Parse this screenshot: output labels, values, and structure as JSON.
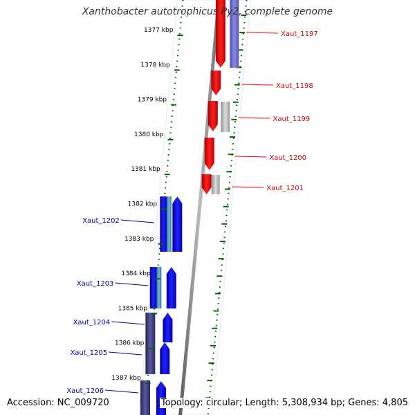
{
  "title": "Xanthobacter autotrophicus Py2, complete genome",
  "footer": {
    "accession": "Accession: NC_009720",
    "topology": "Topology: circular; Length: 5,308,934 bp; Genes: 4,805"
  },
  "colors": {
    "forward": "#ff0000",
    "reverse": "#0000ff",
    "pseudo_gray": "#b8b8b8",
    "purple": "#6f6fd0",
    "dark_purple": "#3d3d80",
    "teal": "#4a8fb8",
    "tick_green": "#006600",
    "backbone": "#888888"
  },
  "scale": {
    "ticks": [
      {
        "label": "1377 kbp",
        "kbp": 1377
      },
      {
        "label": "1378 kbp",
        "kbp": 1378
      },
      {
        "label": "1379 kbp",
        "kbp": 1379
      },
      {
        "label": "1380 kbp",
        "kbp": 1380
      },
      {
        "label": "1381 kbp",
        "kbp": 1381
      },
      {
        "label": "1382 kbp",
        "kbp": 1382
      },
      {
        "label": "1383 kbp",
        "kbp": 1383
      },
      {
        "label": "1384 kbp",
        "kbp": 1384
      },
      {
        "label": "1385 kbp",
        "kbp": 1385
      },
      {
        "label": "1386 kbp",
        "kbp": 1386
      },
      {
        "label": "1387 kbp",
        "kbp": 1387
      }
    ]
  },
  "genes_forward": [
    {
      "label": "Xaut_1197"
    },
    {
      "label": "Xaut_1198"
    },
    {
      "label": "Xaut_1199"
    },
    {
      "label": "Xaut_1200"
    },
    {
      "label": "Xaut_1201"
    }
  ],
  "genes_reverse": [
    {
      "label": "Xaut_1202"
    },
    {
      "label": "Xaut_1203"
    },
    {
      "label": "Xaut_1204"
    },
    {
      "label": "Xaut_1205"
    },
    {
      "label": "Xaut_1206"
    }
  ]
}
